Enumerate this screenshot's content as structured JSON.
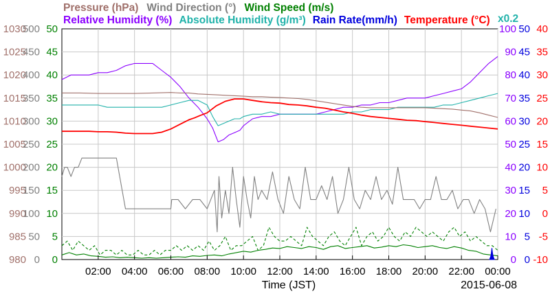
{
  "chart_data": {
    "type": "line",
    "legend": {
      "row1": [
        {
          "name": "Pressure (hPa)",
          "color": "#a0706a"
        },
        {
          "name": "Wind Direction (°)",
          "color": "#808080"
        },
        {
          "name": "Wind Speed (m/s)",
          "color": "#008000"
        }
      ],
      "row2": [
        {
          "name": "Relative Humidity (%)",
          "color": "#8b00ff"
        },
        {
          "name": "Absolute Humidity (g/m³)",
          "color": "#20b2aa"
        },
        {
          "name": "Rain Rate(mm/h)",
          "color": "#0000dd"
        },
        {
          "name": "Temperature (°C)",
          "color": "#ff0000"
        }
      ],
      "multiplier": "x0.2"
    },
    "xlabel": "Time (JST)",
    "date": "2015-06-08",
    "x_range": [
      0,
      24
    ],
    "x_ticks": [
      "02:00",
      "04:00",
      "06:00",
      "08:00",
      "10:00",
      "12:00",
      "14:00",
      "16:00",
      "18:00",
      "20:00",
      "22:00",
      "00:00"
    ],
    "axes": [
      {
        "name": "Pressure (hPa)",
        "color": "#a0706a",
        "range": [
          980,
          1030
        ],
        "ticks": [
          "980",
          "985",
          "990",
          "995",
          "1000",
          "1005",
          "1010",
          "1015",
          "1020",
          "1025",
          "1030"
        ]
      },
      {
        "name": "Wind Direction (°)",
        "color": "#808080",
        "range": [
          0,
          500
        ],
        "ticks": [
          "0",
          "50",
          "100",
          "150",
          "200",
          "250",
          "300",
          "350",
          "400",
          "450",
          "500"
        ]
      },
      {
        "name": "Wind Speed (m/s)",
        "color": "#008000",
        "range": [
          0,
          50
        ],
        "ticks": [
          "0",
          "5",
          "10",
          "15",
          "20",
          "25",
          "30",
          "35",
          "40",
          "45",
          "50"
        ]
      },
      {
        "name": "Relative Humidity (%)",
        "color": "#8b00ff",
        "range": [
          0,
          100
        ],
        "ticks": [
          "0",
          "10",
          "20",
          "30",
          "40",
          "50",
          "60",
          "70",
          "80",
          "90",
          "100"
        ]
      },
      {
        "name": "Rain Rate(mm/h)",
        "color": "#0000dd",
        "range": [
          0,
          50
        ],
        "ticks": [
          "0",
          "5",
          "10",
          "15",
          "20",
          "25",
          "30",
          "35",
          "40",
          "45",
          "50"
        ]
      },
      {
        "name": "Temperature (°C)",
        "color": "#ff0000",
        "range": [
          -10,
          40
        ],
        "ticks": [
          "-10",
          "-5",
          "0",
          "5",
          "10",
          "15",
          "20",
          "25",
          "30",
          "35",
          "40"
        ]
      }
    ],
    "series": [
      {
        "name": "Relative Humidity (%)",
        "color": "#8b00ff",
        "axis": 3,
        "x": [
          0,
          0.5,
          1,
          1.5,
          2,
          2.5,
          3,
          3.5,
          4,
          4.5,
          5,
          5.5,
          6,
          6.5,
          7,
          7.5,
          8,
          8.3,
          8.6,
          8.9,
          9.2,
          9.5,
          9.8,
          10,
          10.5,
          11,
          11.5,
          12,
          12.5,
          13,
          13.5,
          14,
          14.5,
          15,
          15.5,
          16,
          16.5,
          17,
          17.5,
          18,
          18.5,
          19,
          19.5,
          20,
          20.5,
          21,
          21.5,
          22,
          22.5,
          23,
          23.5,
          24
        ],
        "y": [
          78,
          80,
          80,
          80,
          81,
          81,
          82,
          84,
          85,
          85,
          85,
          82,
          79,
          75,
          70,
          66,
          61,
          57,
          51,
          52,
          54,
          55,
          56,
          58,
          61,
          62,
          62,
          63,
          63,
          63,
          63,
          63,
          64,
          65,
          66,
          66,
          67,
          67,
          68,
          68,
          69,
          70,
          70,
          70,
          71,
          72,
          73,
          74,
          77,
          81,
          85,
          88
        ]
      },
      {
        "name": "Absolute Humidity (g/m³)",
        "color": "#20b2aa",
        "axis": 3,
        "x": [
          0,
          0.5,
          1,
          1.5,
          2,
          2.5,
          3,
          3.5,
          4,
          4.5,
          5,
          5.5,
          6,
          6.5,
          7,
          7.5,
          8,
          8.3,
          8.6,
          8.9,
          9.2,
          9.5,
          9.8,
          10,
          10.5,
          11,
          11.5,
          12,
          12.5,
          13,
          13.5,
          14,
          14.5,
          15,
          15.5,
          16,
          16.5,
          17,
          17.5,
          18,
          18.5,
          19,
          19.5,
          20,
          20.5,
          21,
          21.5,
          22,
          22.5,
          23,
          23.5,
          24
        ],
        "y": [
          67,
          67,
          67,
          67,
          67,
          66,
          66,
          66,
          66,
          66,
          66,
          66,
          67,
          68,
          69,
          69,
          67,
          62,
          58,
          59,
          60,
          61,
          61,
          62,
          63,
          63,
          64,
          63,
          63,
          63,
          63,
          63,
          63,
          63,
          63,
          64,
          64,
          65,
          65,
          65,
          66,
          66,
          66,
          66,
          66,
          67,
          67,
          68,
          69,
          70,
          71,
          72
        ]
      },
      {
        "name": "Pressure (hPa)",
        "color": "#a0706a",
        "axis": 0,
        "x": [
          0,
          1,
          2,
          3,
          4,
          5,
          6,
          6.5,
          7,
          7.5,
          8,
          8.5,
          9,
          9.5,
          10,
          10.5,
          11,
          11.5,
          12,
          12.5,
          13,
          13.5,
          14,
          14.5,
          15,
          15.5,
          16,
          16.5,
          17,
          17.5,
          18,
          18.5,
          19,
          19.5,
          20,
          20.5,
          21,
          21.5,
          22,
          22.5,
          23,
          23.5,
          24
        ],
        "y": [
          1016.1,
          1016.1,
          1016.0,
          1016.0,
          1016.0,
          1016.1,
          1016.2,
          1016.1,
          1016.1,
          1015.9,
          1015.8,
          1015.7,
          1015.6,
          1015.5,
          1015.4,
          1015.3,
          1015.3,
          1015.2,
          1015.1,
          1015.0,
          1014.9,
          1014.7,
          1014.4,
          1014.1,
          1013.8,
          1013.5,
          1013.2,
          1013.0,
          1012.9,
          1012.9,
          1012.9,
          1012.9,
          1012.9,
          1012.9,
          1012.9,
          1012.8,
          1012.7,
          1012.6,
          1012.4,
          1012.2,
          1011.8,
          1011.3,
          1010.8
        ]
      },
      {
        "name": "Temperature (°C)",
        "color": "#ff0000",
        "axis": 5,
        "x": [
          0,
          0.5,
          1,
          1.5,
          2,
          2.5,
          3,
          3.5,
          4,
          4.5,
          5,
          5.5,
          6,
          6.5,
          7,
          7.3,
          7.6,
          8,
          8.5,
          9,
          9.5,
          10,
          10.5,
          11,
          11.5,
          12,
          12.5,
          13,
          13.5,
          14,
          14.5,
          15,
          15.5,
          16,
          16.5,
          17,
          17.5,
          18,
          18.5,
          19,
          19.5,
          20,
          20.5,
          21,
          21.5,
          22,
          22.5,
          23,
          23.5,
          24
        ],
        "y": [
          17.8,
          17.8,
          17.8,
          17.8,
          17.7,
          17.7,
          17.6,
          17.4,
          17.3,
          17.3,
          17.3,
          17.6,
          18.3,
          19.3,
          20.3,
          20.7,
          21.2,
          21.8,
          23.3,
          24.3,
          24.8,
          24.8,
          24.5,
          24.2,
          24.0,
          23.9,
          23.6,
          23.5,
          23.3,
          23.0,
          22.8,
          22.4,
          22.0,
          21.7,
          21.3,
          21.0,
          20.8,
          20.6,
          20.4,
          20.2,
          20.1,
          19.9,
          19.7,
          19.5,
          19.3,
          19.1,
          18.9,
          18.7,
          18.5,
          18.3
        ]
      },
      {
        "name": "Wind Direction (°)",
        "color": "#808080",
        "axis": 1,
        "x": [
          0,
          0.15,
          0.3,
          0.5,
          0.7,
          0.9,
          1.1,
          1.3,
          1.6,
          2,
          2.5,
          3,
          3.5,
          4,
          4.5,
          5,
          5.5,
          6,
          6.05,
          6.4,
          6.8,
          7.2,
          7.6,
          8,
          8.2,
          8.4,
          8.55,
          8.65,
          8.8,
          9,
          9.2,
          9.4,
          9.6,
          9.8,
          10,
          10.2,
          10.4,
          10.6,
          10.8,
          11,
          11.3,
          11.6,
          11.9,
          12.2,
          12.5,
          12.8,
          13.1,
          13.4,
          13.7,
          14,
          14.3,
          14.6,
          14.9,
          15.2,
          15.5,
          15.8,
          16.1,
          16.4,
          16.7,
          17,
          17.3,
          17.6,
          17.9,
          18.2,
          18.5,
          18.8,
          19.1,
          19.4,
          19.7,
          20,
          20.3,
          20.6,
          20.9,
          21.2,
          21.5,
          21.8,
          22.1,
          22.4,
          22.7,
          23,
          23.3,
          23.6,
          23.9
        ],
        "y": [
          180,
          200,
          200,
          180,
          200,
          200,
          220,
          220,
          220,
          220,
          220,
          220,
          110,
          110,
          110,
          110,
          110,
          110,
          130,
          130,
          110,
          130,
          130,
          110,
          130,
          150,
          60,
          180,
          90,
          150,
          100,
          200,
          130,
          70,
          180,
          130,
          90,
          180,
          130,
          150,
          130,
          190,
          130,
          100,
          180,
          130,
          110,
          200,
          130,
          130,
          160,
          130,
          180,
          100,
          130,
          200,
          130,
          110,
          150,
          130,
          180,
          130,
          150,
          120,
          200,
          130,
          130,
          130,
          110,
          130,
          130,
          180,
          130,
          130,
          150,
          110,
          130,
          130,
          100,
          130,
          110,
          60,
          110
        ]
      },
      {
        "name": "Wind Speed (m/s) gust",
        "color": "#008000",
        "axis": 2,
        "style": "dashed",
        "x": [
          0,
          0.3,
          0.6,
          0.9,
          1.2,
          1.5,
          1.8,
          2.1,
          2.4,
          2.7,
          3,
          3.3,
          3.6,
          3.9,
          4.2,
          4.5,
          4.8,
          5.1,
          5.4,
          5.7,
          6,
          6.3,
          6.6,
          6.9,
          7.2,
          7.5,
          7.8,
          8.1,
          8.4,
          8.7,
          9,
          9.3,
          9.6,
          9.9,
          10.2,
          10.5,
          10.8,
          11.1,
          11.4,
          11.7,
          12,
          12.3,
          12.6,
          12.9,
          13.2,
          13.5,
          13.8,
          14.1,
          14.4,
          14.7,
          15,
          15.3,
          15.6,
          15.9,
          16.2,
          16.5,
          16.8,
          17.1,
          17.4,
          17.7,
          18,
          18.3,
          18.6,
          18.9,
          19.2,
          19.5,
          19.8,
          20.1,
          20.4,
          20.7,
          21,
          21.3,
          21.6,
          21.9,
          22.2,
          22.5,
          22.8,
          23.1,
          23.4,
          23.7,
          24
        ],
        "y": [
          3,
          4,
          2,
          4,
          3,
          2,
          3,
          1,
          2,
          2,
          1,
          2,
          1,
          1,
          2,
          1,
          1,
          2,
          1,
          2,
          2,
          3,
          2,
          3,
          2,
          3,
          2,
          4,
          2,
          3,
          5,
          2,
          3,
          3,
          4,
          5,
          2,
          3,
          7,
          5,
          4,
          4,
          5,
          4,
          3,
          7,
          5,
          4,
          3,
          5,
          6,
          4,
          3,
          5,
          7,
          3,
          5,
          6,
          4,
          5,
          7,
          5,
          4,
          6,
          5,
          7,
          6,
          5,
          6,
          5,
          4,
          6,
          7,
          5,
          6,
          4,
          5,
          4,
          3,
          3,
          2
        ]
      },
      {
        "name": "Wind Speed (m/s)",
        "color": "#008000",
        "axis": 2,
        "style": "solid",
        "x": [
          0,
          0.4,
          0.8,
          1.2,
          1.6,
          2,
          2.4,
          2.8,
          3.2,
          3.6,
          4,
          4.4,
          4.8,
          5.2,
          5.6,
          6,
          6.4,
          6.8,
          7.2,
          7.6,
          8,
          8.4,
          8.8,
          9.2,
          9.6,
          10,
          10.4,
          10.8,
          11.2,
          11.6,
          12,
          12.4,
          12.8,
          13.2,
          13.6,
          14,
          14.4,
          14.8,
          15.2,
          15.6,
          16,
          16.4,
          16.8,
          17.2,
          17.6,
          18,
          18.4,
          18.8,
          19.2,
          19.6,
          20,
          20.4,
          20.8,
          21.2,
          21.6,
          22,
          22.4,
          22.8,
          23.2,
          23.6,
          24
        ],
        "y": [
          1,
          1.5,
          1,
          1.2,
          0.8,
          0.7,
          0.5,
          0.6,
          0.4,
          0.5,
          0.4,
          0.3,
          0.4,
          0.3,
          0.4,
          0.5,
          0.6,
          0.5,
          0.8,
          0.7,
          0.9,
          1,
          0.8,
          1.2,
          1.5,
          1.8,
          1.6,
          2,
          2.2,
          2.5,
          2.4,
          2.8,
          2.6,
          2.4,
          2.8,
          2.6,
          2.2,
          2.8,
          3,
          2.4,
          2.6,
          2.8,
          3,
          2.5,
          2.7,
          3,
          2.8,
          3.2,
          3,
          2.6,
          2.8,
          3,
          2.6,
          2.4,
          2.8,
          2.5,
          2,
          1.8,
          1.2,
          1,
          0.8
        ]
      },
      {
        "name": "Rain Rate(mm/h)",
        "color": "#0000dd",
        "axis": 4,
        "style": "area",
        "x": [
          23.55,
          23.62,
          23.68,
          23.72,
          23.76,
          23.82
        ],
        "y": [
          0,
          0.8,
          2.5,
          1.2,
          0.5,
          0
        ]
      }
    ]
  }
}
